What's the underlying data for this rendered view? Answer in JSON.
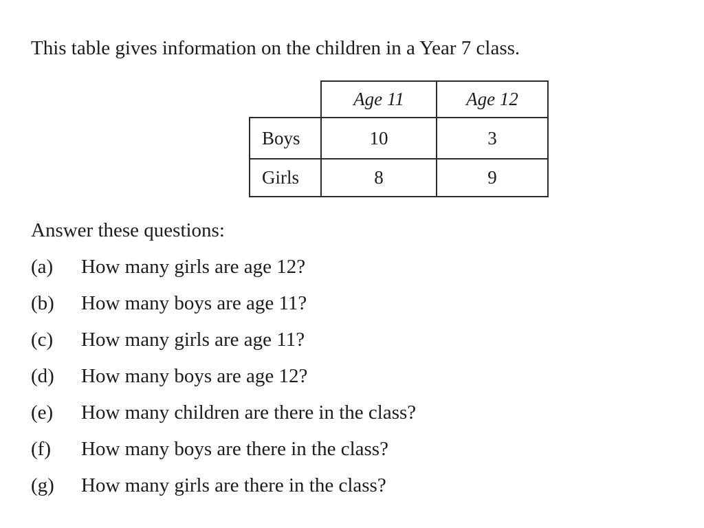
{
  "page": {
    "background_color": "#ffffff",
    "text_color": "#1c1c1c",
    "table_border_color": "#2b2b2b"
  },
  "intro_text": "This table gives information on the children in a Year 7 class.",
  "table": {
    "col_headers": [
      "Age 11",
      "Age 12"
    ],
    "rows": [
      {
        "label": "Boys",
        "values": [
          "10",
          "3"
        ]
      },
      {
        "label": "Girls",
        "values": [
          "8",
          "9"
        ]
      }
    ]
  },
  "questions": {
    "heading": "Answer these questions:",
    "items": [
      {
        "label": "(a)",
        "text": "How many girls are age 12?"
      },
      {
        "label": "(b)",
        "text": "How many boys are age 11?"
      },
      {
        "label": "(c)",
        "text": "How many girls are age 11?"
      },
      {
        "label": "(d)",
        "text": "How many boys are age 12?"
      },
      {
        "label": "(e)",
        "text": "How many children are there in the class?"
      },
      {
        "label": "(f)",
        "text": "How many boys are there in the class?"
      },
      {
        "label": "(g)",
        "text": "How many girls are there in the class?"
      }
    ]
  }
}
